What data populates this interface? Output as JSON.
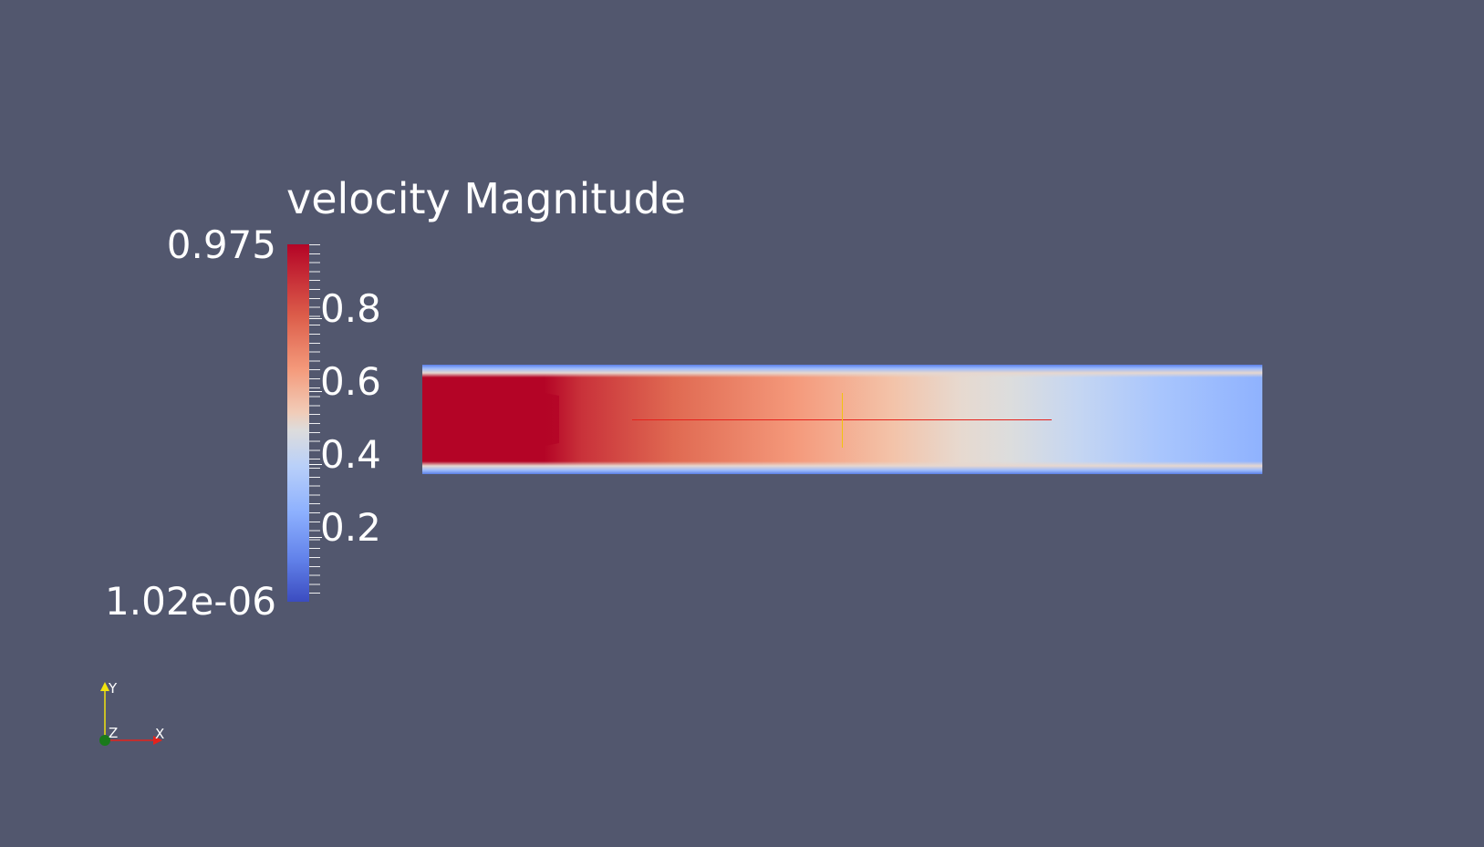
{
  "colorbar": {
    "title": "velocity Magnitude",
    "max_label": "0.975",
    "min_label": "1.02e-06",
    "tick_labels": [
      "0.8",
      "0.6",
      "0.4",
      "0.2"
    ],
    "colormap": "cool-to-warm",
    "colors": {
      "low": "#3b4cc0",
      "mid": "#dddcdc",
      "high": "#b40426"
    }
  },
  "orientation_axes": {
    "x_label": "X",
    "y_label": "Y",
    "z_label": "Z",
    "x_color": "#e5221c",
    "y_color": "#f1e40f",
    "z_color": "#1a7a1a"
  },
  "background_color": "#52576e",
  "probe_line_colors": {
    "horizontal": "#e5221c",
    "vertical": "#f1c40f"
  }
}
